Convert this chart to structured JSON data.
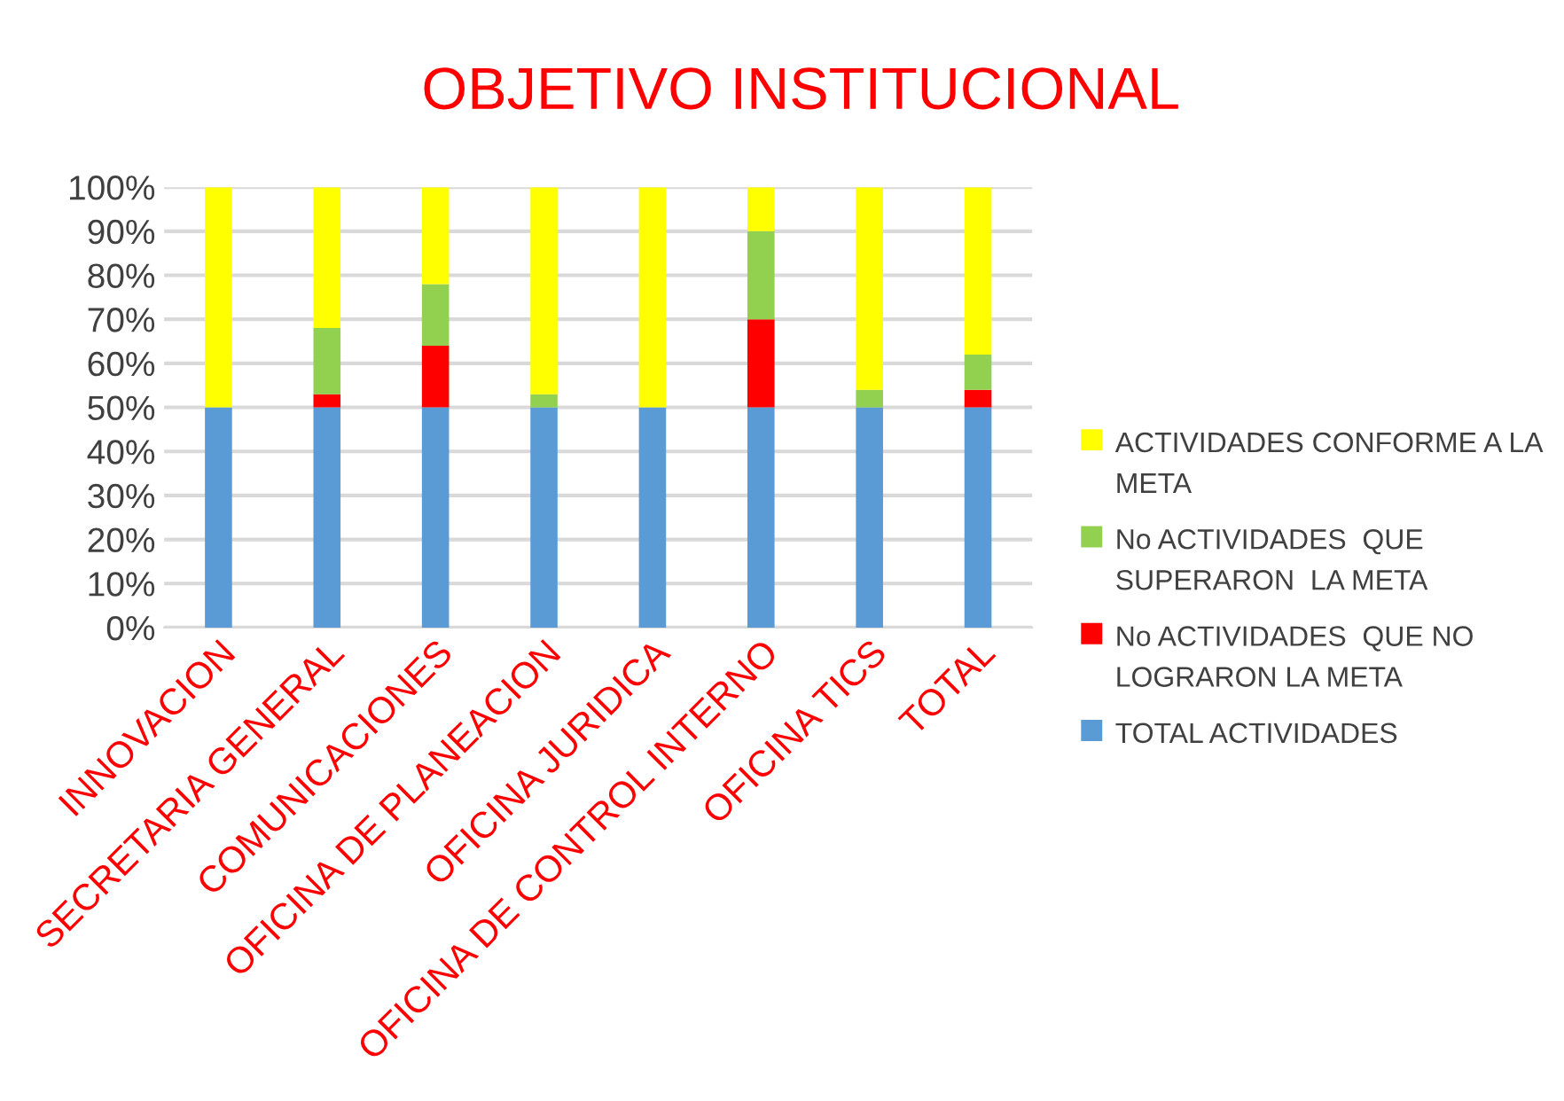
{
  "chart_data": {
    "type": "bar",
    "stacked": true,
    "title": "OBJETIVO INSTITUCIONAL",
    "categories": [
      "INNOVACION",
      "SECRETARIA GENERAL",
      "COMUNICACIONES",
      "OFICINA DE PLANEACION",
      "OFICINA JURIDICA",
      "OFICINA DE CONTROL INTERNO",
      "OFICINA TICS",
      "TOTAL"
    ],
    "series": [
      {
        "name": "TOTAL ACTIVIDADES",
        "color": "#5b9bd5",
        "values": [
          50,
          50,
          50,
          50,
          50,
          50,
          50,
          50
        ]
      },
      {
        "name": "No ACTIVIDADES  QUE NO LOGRARON LA META",
        "color": "#ff0000",
        "values": [
          0,
          3,
          14,
          0,
          0,
          20,
          0,
          4
        ]
      },
      {
        "name": "No ACTIVIDADES  QUE SUPERARON  LA META",
        "color": "#92d050",
        "values": [
          0,
          15,
          14,
          3,
          0,
          20,
          4,
          8
        ]
      },
      {
        "name": "ACTIVIDADES CONFORME A LA META",
        "color": "#ffff00",
        "values": [
          50,
          32,
          22,
          47,
          50,
          10,
          46,
          38
        ]
      }
    ],
    "ylim": [
      0,
      100
    ],
    "yticks": [
      {
        "value": 0,
        "label": "0%"
      },
      {
        "value": 10,
        "label": "10%"
      },
      {
        "value": 20,
        "label": "20%"
      },
      {
        "value": 30,
        "label": "30%"
      },
      {
        "value": 40,
        "label": "40%"
      },
      {
        "value": 50,
        "label": "50%"
      },
      {
        "value": 60,
        "label": "60%"
      },
      {
        "value": 70,
        "label": "70%"
      },
      {
        "value": 80,
        "label": "80%"
      },
      {
        "value": 90,
        "label": "90%"
      },
      {
        "value": 100,
        "label": "100%"
      }
    ],
    "grid": "y",
    "legend": "right"
  }
}
